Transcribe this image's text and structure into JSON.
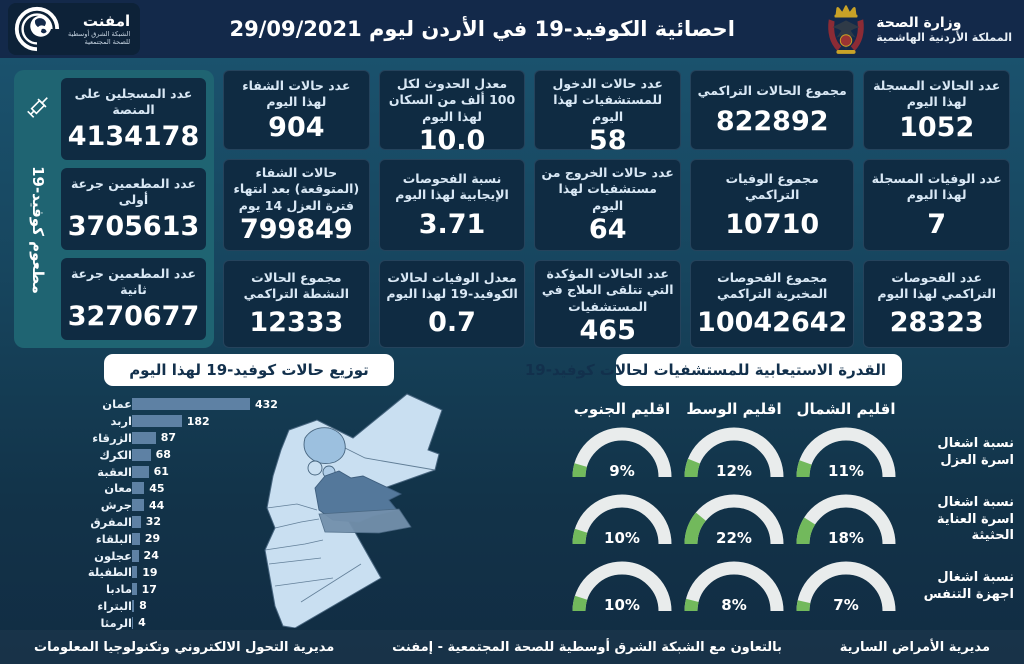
{
  "header": {
    "title": "احصائية الكوفيد-19 في الأردن ليوم",
    "date": "29/09/2021",
    "ministry_line1": "وزارة الصحة",
    "ministry_line2": "المملكة الأردنية الهاشمية",
    "logo": {
      "name": "امفنت",
      "line1": "الشبكة الشرق أوسطية",
      "line2": "للصحة المجتمعية"
    }
  },
  "stats": {
    "daily_cases": {
      "label": "عدد الحالات المسجلة لهذا اليوم",
      "value": "1052"
    },
    "daily_deaths": {
      "label": "عدد الوفيات المسجلة لهذا اليوم",
      "value": "7"
    },
    "daily_tests": {
      "label": "عدد الفحوصات التراكمي لهذا اليوم",
      "value": "28323"
    },
    "total_cases": {
      "label": "مجموع الحالات التراكمي",
      "value": "822892"
    },
    "total_deaths": {
      "label": "مجموع الوفيات التراكمي",
      "value": "10710"
    },
    "total_lab_tests": {
      "label": "مجموع الفحوصات المخبرية التراكمي",
      "value": "10042642"
    },
    "hospital_admissions": {
      "label": "عدد حالات الدخول للمستشفيات لهذا اليوم",
      "value": "58"
    },
    "hospital_discharges": {
      "label": "عدد حالات الخروج من مستشفيات لهذا اليوم",
      "value": "64"
    },
    "hospitalized_cases": {
      "label": "عدد الحالات المؤكدة التي تتلقى العلاج في المستشفيات",
      "value": "465"
    },
    "incidence_rate": {
      "label": "معدل الحدوث لكل 100 ألف من السكان لهذا اليوم",
      "value": "10.0"
    },
    "positivity_rate": {
      "label": "نسبة الفحوصات الإيجابية لهذا اليوم",
      "value": "3.71"
    },
    "fatality_rate": {
      "label": "معدل الوفيات لحالات الكوفيد-19 لهذا اليوم",
      "value": "0.7"
    },
    "daily_recoveries": {
      "label": "عدد حالات الشفاء لهذا اليوم",
      "value": "904"
    },
    "expected_recoveries": {
      "label": "حالات الشفاء (المتوقعة) بعد انتهاء فترة العزل 14 يوم",
      "value": "799849"
    },
    "active_cases": {
      "label": "مجموع الحالات النشطة التراكمي",
      "value": "12333"
    }
  },
  "vaccine_panel": {
    "side_label": "مطعوم كوفيد-19",
    "cards": [
      {
        "label": "عدد المسجلين على المنصة",
        "value": "4134178"
      },
      {
        "label": "عدد المطعمين جرعة أولى",
        "value": "3705613"
      },
      {
        "label": "عدد المطعمين جرعة ثانية",
        "value": "3270677"
      }
    ]
  },
  "chart_data": [
    {
      "type": "bar",
      "orientation": "horizontal",
      "title": "توزيع حالات كوفيد-19 لهذا اليوم",
      "categories": [
        "عمان",
        "اربد",
        "الزرقاء",
        "الكرك",
        "العقبة",
        "معان",
        "جرش",
        "المفرق",
        "البلقاء",
        "عجلون",
        "الطفيلة",
        "مادبا",
        "البتراء",
        "الرمثا"
      ],
      "values": [
        432,
        182,
        87,
        68,
        61,
        45,
        44,
        32,
        29,
        24,
        19,
        17,
        8,
        4
      ],
      "xlim": [
        0,
        432
      ],
      "bar_color": "#5E81A4"
    },
    {
      "type": "table",
      "title": "القدرة الاستيعابية للمستشفيات لحالات كوفيد-19",
      "columns": [
        "اقليم الشمال",
        "اقليم الوسط",
        "اقليم الجنوب"
      ],
      "rows": [
        {
          "label": "نسبة اشغال اسرة العزل",
          "values": [
            11,
            12,
            9
          ],
          "display": [
            "11%",
            "12%",
            "9%"
          ]
        },
        {
          "label": "نسبة اشغال اسرة العناية الحثيثة",
          "values": [
            18,
            22,
            10
          ],
          "display": [
            "18%",
            "22%",
            "10%"
          ]
        },
        {
          "label": "نسبة اشغال اجهزة التنفس",
          "values": [
            7,
            8,
            10
          ],
          "display": [
            "7%",
            "8%",
            "10%"
          ]
        }
      ],
      "gauge_green": "#72B95C",
      "gauge_track": "#E9ECEC"
    }
  ],
  "footer": {
    "right": "مديرية الأمراض السارية",
    "center": "بالتعاون مع الشبكة الشرق أوسطية للصحة المجتمعية - إمفنت",
    "left": "مديرية التحول الالكتروني وتكنولوجيا المعلومات"
  },
  "colors": {
    "background_top": "#1B5571",
    "background_bottom": "#112C43",
    "header": "#13294A",
    "card": "#0F2B42",
    "panel_teal": "#1F6472",
    "bar": "#5E81A4",
    "gauge_green": "#72B95C",
    "gauge_track": "#E9ECEC",
    "map_light": "#C9DFF1",
    "map_dark": "#54789B",
    "title_box_bg": "#FFFFFF",
    "title_box_text": "#12304C"
  }
}
